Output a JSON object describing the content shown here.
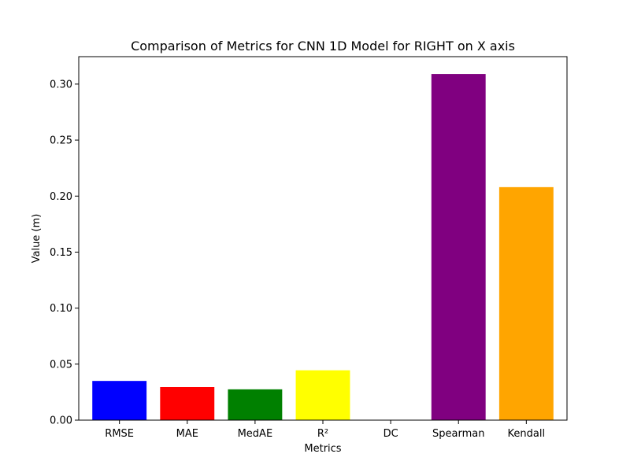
{
  "chart_data": {
    "type": "bar",
    "title": "Comparison of Metrics for CNN 1D Model for RIGHT on X axis",
    "xlabel": "Metrics",
    "ylabel": "Value (m)",
    "categories": [
      "RMSE",
      "MAE",
      "MedAE",
      "R²",
      "DC",
      "Spearman",
      "Kendall"
    ],
    "values": [
      0.035,
      0.0295,
      0.0275,
      0.0445,
      0.0,
      0.309,
      0.208
    ],
    "colors": [
      "#0000ff",
      "#ff0000",
      "#008000",
      "#ffff00",
      "#00ffff",
      "#800080",
      "#ffa500"
    ],
    "ylim": [
      0,
      0.3245
    ],
    "yticks": [
      0.0,
      0.05,
      0.1,
      0.15,
      0.2,
      0.25,
      0.3
    ],
    "ytick_labels": [
      "0.00",
      "0.05",
      "0.10",
      "0.15",
      "0.20",
      "0.25",
      "0.30"
    ],
    "grid": false,
    "legend": "none"
  }
}
